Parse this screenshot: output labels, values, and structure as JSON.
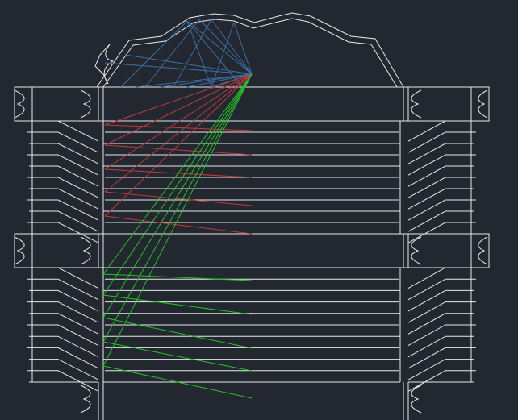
{
  "viewport": {
    "background": "#232830"
  },
  "colors": {
    "outline": "#e6e8ec",
    "dome_rays": "#3b6ea5",
    "upper_rays": "#c0393b",
    "lower_rays": "#22c322"
  },
  "icons": [
    "drawing-canvas"
  ]
}
